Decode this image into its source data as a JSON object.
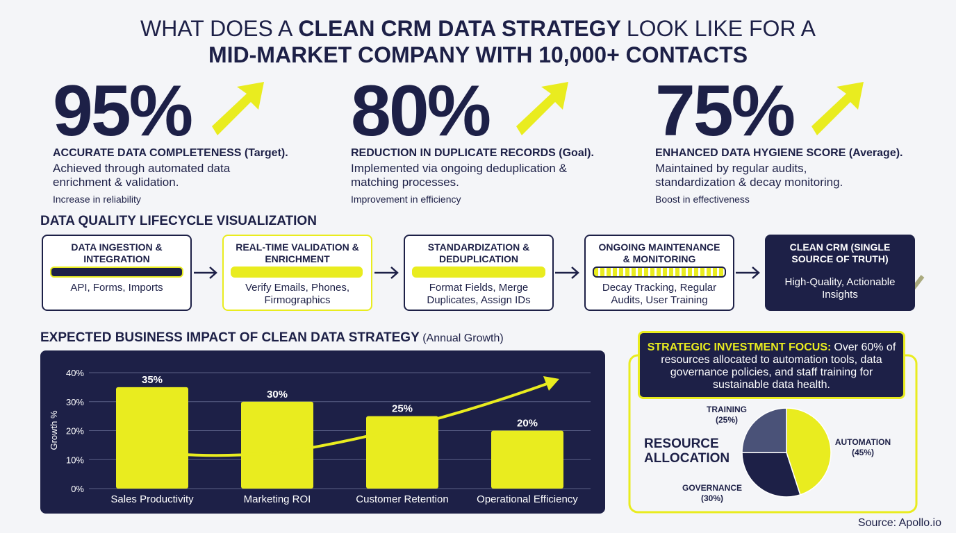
{
  "header": {
    "title_lead": "WHAT DOES A",
    "title_bold": "CLEAN CRM DATA STRATEGY",
    "title_tail": "LOOK LIKE FOR A",
    "title_line2": "MID-MARKET COMPANY WITH 10,000+ CONTACTS"
  },
  "stats": [
    {
      "value": "95%",
      "heading": "ACCURATE DATA COMPLETENESS (Target).",
      "body": "Achieved through automated data enrichment & validation.",
      "note": "Increase in reliability"
    },
    {
      "value": "80%",
      "heading": "REDUCTION IN DUPLICATE RECORDS (Goal).",
      "body": "Implemented via ongoing deduplication & matching processes.",
      "note": "Improvement in efficiency"
    },
    {
      "value": "75%",
      "heading": "ENHANCED DATA HYGIENE SCORE (Average).",
      "body": "Maintained by regular audits, standardization & decay monitoring.",
      "note": "Boost in effectiveness"
    }
  ],
  "lifecycle": {
    "title": "DATA QUALITY LIFECYCLE VISUALIZATION",
    "steps": [
      {
        "title": "DATA INGESTION & INTEGRATION",
        "desc": "API, Forms, Imports"
      },
      {
        "title": "REAL-TIME VALIDATION & ENRICHMENT",
        "desc": "Verify Emails, Phones, Firmographics"
      },
      {
        "title": "STANDARDIZATION & DEDUPLICATION",
        "desc": "Format Fields, Merge Duplicates, Assign IDs"
      },
      {
        "title": "ONGOING MAINTENANCE & MONITORING",
        "desc": "Decay Tracking, Regular Audits, User Training"
      },
      {
        "title": "CLEAN CRM (SINGLE SOURCE OF TRUTH)",
        "desc": "High-Quality, Actionable Insights"
      }
    ]
  },
  "chart_data": [
    {
      "type": "bar",
      "title": "EXPECTED BUSINESS IMPACT OF CLEAN DATA STRATEGY",
      "subtitle": "(Annual Growth)",
      "y_label": "Growth %",
      "categories": [
        "Sales Productivity",
        "Marketing ROI",
        "Customer Retention",
        "Operational Efficiency"
      ],
      "values": [
        35,
        30,
        25,
        20
      ],
      "value_labels": [
        "35%",
        "30%",
        "25%",
        "20%"
      ],
      "color": "#e9ec1f",
      "ylim": [
        0,
        40
      ],
      "yticks": [
        {
          "value": 0,
          "label": "0%"
        },
        {
          "value": 10,
          "label": "10%"
        },
        {
          "value": 20,
          "label": "20%"
        },
        {
          "value": 30,
          "label": "30%"
        },
        {
          "value": 40,
          "label": "40%"
        }
      ],
      "grid": true
    },
    {
      "type": "pie",
      "title": "RESOURCE ALLOCATION",
      "categories": [
        "AUTOMATION",
        "GOVERNANCE",
        "TRAINING"
      ],
      "values": [
        45,
        30,
        25
      ],
      "value_labels": [
        "(45%)",
        "(30%)",
        "(25%)"
      ],
      "colors": [
        "#e9ec1f",
        "#1d2047",
        "#4a5278"
      ]
    }
  ],
  "focus": {
    "highlight": "STRATEGIC INVESTMENT FOCUS:",
    "text": "Over 60% of resources allocated to automation tools, data governance policies, and staff training for sustainable data health."
  },
  "source": "Source: Apollo.io"
}
